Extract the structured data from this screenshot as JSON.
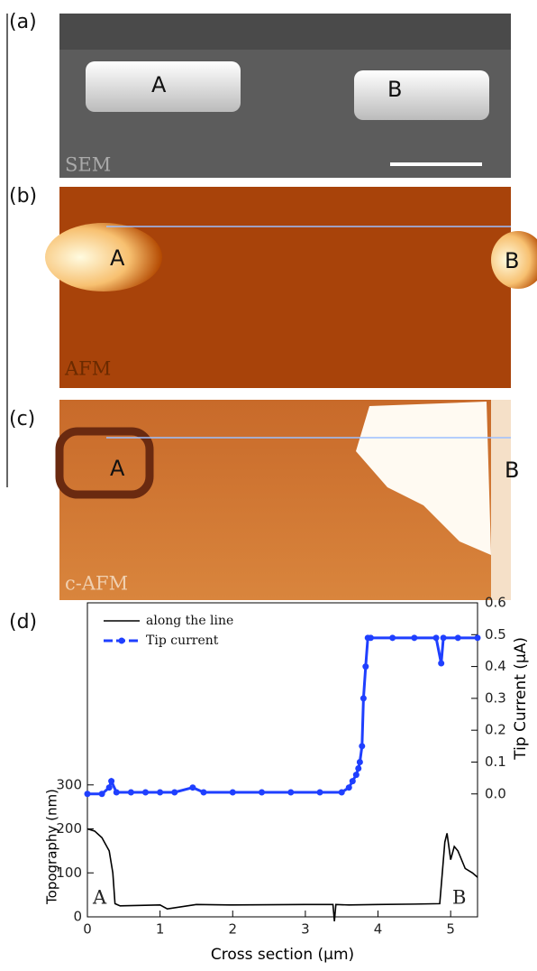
{
  "panels": {
    "a": {
      "label": "(a)",
      "marker_a": "A",
      "marker_b": "B",
      "caption": "SEM"
    },
    "b": {
      "label": "(b)",
      "marker_a": "A",
      "marker_b": "B",
      "caption": "AFM"
    },
    "c": {
      "label": "(c)",
      "marker_a": "A",
      "marker_b": "B",
      "caption": "c-AFM"
    }
  },
  "chart_data": {
    "type": "line",
    "panel_label": "(d)",
    "x_label": "Cross section (µm)",
    "y_label": "Topography (nm)",
    "y2_label": "Tip Current (µA)",
    "annotations": [
      "A",
      "B"
    ],
    "xlim": [
      0,
      5.37
    ],
    "xticks": [
      0,
      1,
      2,
      3,
      4,
      5
    ],
    "ylim": [
      0,
      714
    ],
    "yticks": [
      0,
      100,
      200,
      300
    ],
    "y2lim": [
      -0.386,
      0.6
    ],
    "y2ticks": [
      {
        "value": 0,
        "label": "0.0"
      },
      {
        "value": 0.1,
        "label": "0.1"
      },
      {
        "value": 0.2,
        "label": "0.2"
      },
      {
        "value": 0.3,
        "label": "0.3"
      },
      {
        "value": 0.4,
        "label": "0.4"
      },
      {
        "value": 0.5,
        "label": "0.5"
      },
      {
        "value": 0.6,
        "label": "0.6"
      }
    ],
    "legend": "top-left",
    "series": [
      {
        "name": "along the line",
        "color": "#000000",
        "markers": false,
        "x": [
          0,
          0.1,
          0.2,
          0.3,
          0.35,
          0.38,
          0.45,
          1,
          1.1,
          1.5,
          2,
          3,
          3.38,
          3.4,
          3.42,
          3.6,
          4,
          4.5,
          4.85,
          4.88,
          4.92,
          4.95,
          5,
          5.05,
          5.1,
          5.2,
          5.3,
          5.37
        ],
        "values": [
          200,
          195,
          180,
          150,
          100,
          30,
          25,
          27,
          18,
          28,
          27,
          28,
          28,
          -10,
          28,
          27,
          28,
          29,
          30,
          90,
          170,
          190,
          130,
          160,
          150,
          110,
          100,
          90
        ]
      },
      {
        "name": "Tip current",
        "color": "#1f3fff",
        "markers": true,
        "axis": "y2",
        "x": [
          0,
          0.2,
          0.3,
          0.33,
          0.4,
          0.6,
          0.8,
          1,
          1.2,
          1.45,
          1.6,
          2,
          2.4,
          2.8,
          3.2,
          3.5,
          3.6,
          3.65,
          3.7,
          3.73,
          3.75,
          3.78,
          3.8,
          3.83,
          3.86,
          3.9,
          4.2,
          4.5,
          4.8,
          4.87,
          4.9,
          5.1,
          5.37
        ],
        "values": [
          0,
          0,
          0.02,
          0.04,
          0.005,
          0.005,
          0.005,
          0.005,
          0.005,
          0.02,
          0.005,
          0.005,
          0.005,
          0.005,
          0.005,
          0.005,
          0.02,
          0.04,
          0.06,
          0.08,
          0.1,
          0.15,
          0.3,
          0.4,
          0.49,
          0.49,
          0.49,
          0.49,
          0.49,
          0.41,
          0.49,
          0.49,
          0.49
        ]
      }
    ]
  }
}
